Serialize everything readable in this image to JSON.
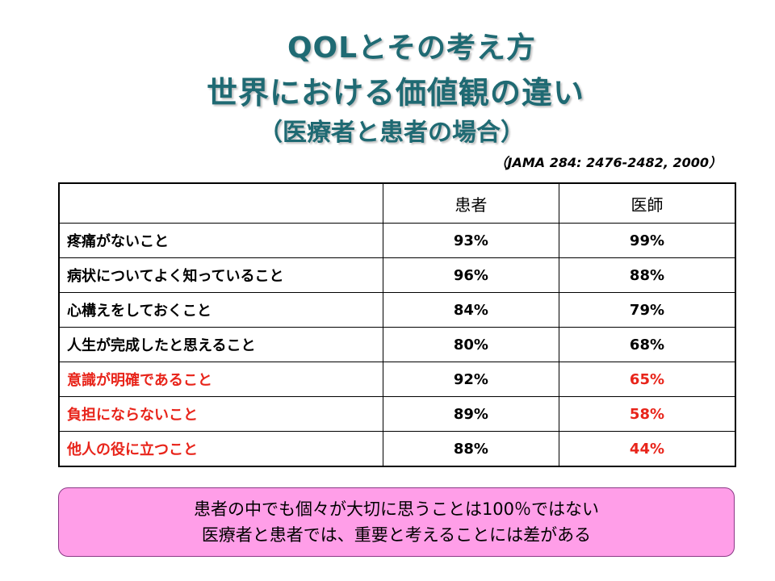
{
  "title": {
    "line1": "QOLとその考え方",
    "line2": "世界における価値観の違い",
    "line3": "（医療者と患者の場合）"
  },
  "citation": "（JAMA 284: 2476-2482, 2000）",
  "table": {
    "headers": [
      "",
      "患者",
      "医師"
    ],
    "rows": [
      {
        "item": "疼痛がないこと",
        "patient": "93%",
        "doctor": "99%"
      },
      {
        "item": "病状についてよく知っていること",
        "patient": "96%",
        "doctor": "88%"
      },
      {
        "item": "心構えをしておくこと",
        "patient": "84%",
        "doctor": "79%"
      },
      {
        "item": "人生が完成したと思えること",
        "patient": "80%",
        "doctor": "68%"
      },
      {
        "item": "意識が明確であること",
        "patient": "92%",
        "doctor": "65%"
      },
      {
        "item": "負担にならないこと",
        "patient": "89%",
        "doctor": "58%"
      },
      {
        "item": "他人の役に立つこと",
        "patient": "88%",
        "doctor": "44%"
      }
    ]
  },
  "note": {
    "line1": "患者の中でも個々が大切に思うことは100％ではない",
    "line2": "医療者と患者では、重要と考えることには差がある"
  },
  "colors": {
    "title": "#1f6a73",
    "highlight": "#e8241a",
    "note_background": "#ff9ee8"
  }
}
